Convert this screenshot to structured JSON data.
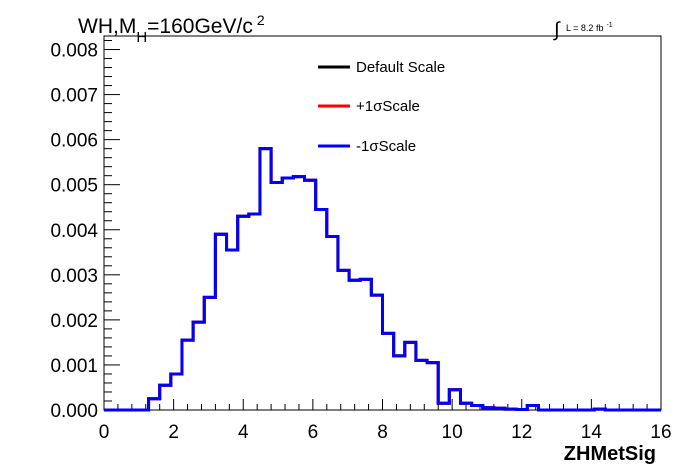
{
  "header": {
    "title_main": "WH,M",
    "title_sub": "H",
    "title_rest": "=160GeV/c",
    "title_sup": "2",
    "lumi_integral": "∫",
    "lumi_text": "L = 8.2 fb",
    "lumi_sup": "-1"
  },
  "legend": {
    "entries": [
      {
        "label": "Default Scale",
        "color": "#000000"
      },
      {
        "label": "+1σScale",
        "color": "#ff0000"
      },
      {
        "label": "-1σScale",
        "color": "#0000ff"
      }
    ]
  },
  "chart_data": {
    "type": "line",
    "subtype": "step-histogram",
    "title": "WH,M_H=160GeV/c^2",
    "xlabel": "ZHMetSig",
    "ylabel": "",
    "xlim": [
      0,
      16
    ],
    "ylim": [
      0,
      0.0083
    ],
    "x_ticks": [
      0,
      2,
      4,
      6,
      8,
      10,
      12,
      14,
      16
    ],
    "x_tick_labels": [
      "0",
      "2",
      "4",
      "6",
      "8",
      "10",
      "12",
      "14",
      "16"
    ],
    "y_ticks": [
      0,
      0.001,
      0.002,
      0.003,
      0.004,
      0.005,
      0.006,
      0.007,
      0.008
    ],
    "y_tick_labels": [
      "0.000",
      "0.001",
      "0.002",
      "0.003",
      "0.004",
      "0.005",
      "0.006",
      "0.007",
      "0.008"
    ],
    "grid": false,
    "legend_position": "top-center",
    "bin_width": 0.32,
    "bin_edges_start": 0,
    "series": [
      {
        "name": "Default Scale",
        "color": "#000000",
        "values": [
          0,
          0,
          0,
          0,
          0.00025,
          0.00055,
          0.0008,
          0.00155,
          0.00195,
          0.0025,
          0.0039,
          0.00355,
          0.0043,
          0.00435,
          0.0058,
          0.00505,
          0.00515,
          0.00518,
          0.0051,
          0.00445,
          0.00385,
          0.0031,
          0.00288,
          0.0029,
          0.00255,
          0.0017,
          0.0012,
          0.0015,
          0.0011,
          0.00105,
          0.00015,
          0.00045,
          0.00015,
          0.0001,
          5e-05,
          4e-05,
          2e-05,
          1e-05,
          0.0001,
          0,
          0,
          0,
          0,
          0,
          2e-05,
          0,
          0,
          0,
          0,
          0
        ]
      },
      {
        "name": "+1σScale",
        "color": "#ff0000",
        "values": [
          0,
          0,
          0,
          0,
          0.00025,
          0.00055,
          0.0008,
          0.00155,
          0.00195,
          0.0025,
          0.0039,
          0.00355,
          0.0043,
          0.00435,
          0.0058,
          0.00505,
          0.00515,
          0.00518,
          0.0051,
          0.00445,
          0.00385,
          0.0031,
          0.00288,
          0.0029,
          0.00255,
          0.0017,
          0.0012,
          0.0015,
          0.0011,
          0.00105,
          0.00015,
          0.00045,
          0.00015,
          0.0001,
          5e-05,
          4e-05,
          2e-05,
          1e-05,
          0.0001,
          0,
          0,
          0,
          0,
          0,
          2e-05,
          0,
          0,
          0,
          0,
          0
        ]
      },
      {
        "name": "-1σScale",
        "color": "#0000ff",
        "values": [
          0,
          0,
          0,
          0,
          0.00025,
          0.00055,
          0.0008,
          0.00155,
          0.00195,
          0.0025,
          0.0039,
          0.00355,
          0.0043,
          0.00435,
          0.0058,
          0.00505,
          0.00515,
          0.00518,
          0.0051,
          0.00445,
          0.00385,
          0.0031,
          0.00288,
          0.0029,
          0.00255,
          0.0017,
          0.0012,
          0.0015,
          0.0011,
          0.00105,
          0.00015,
          0.00045,
          0.00015,
          0.0001,
          5e-05,
          4e-05,
          2e-05,
          1e-05,
          0.0001,
          0,
          0,
          0,
          0,
          0,
          2e-05,
          0,
          0,
          0,
          0,
          0
        ]
      }
    ]
  }
}
